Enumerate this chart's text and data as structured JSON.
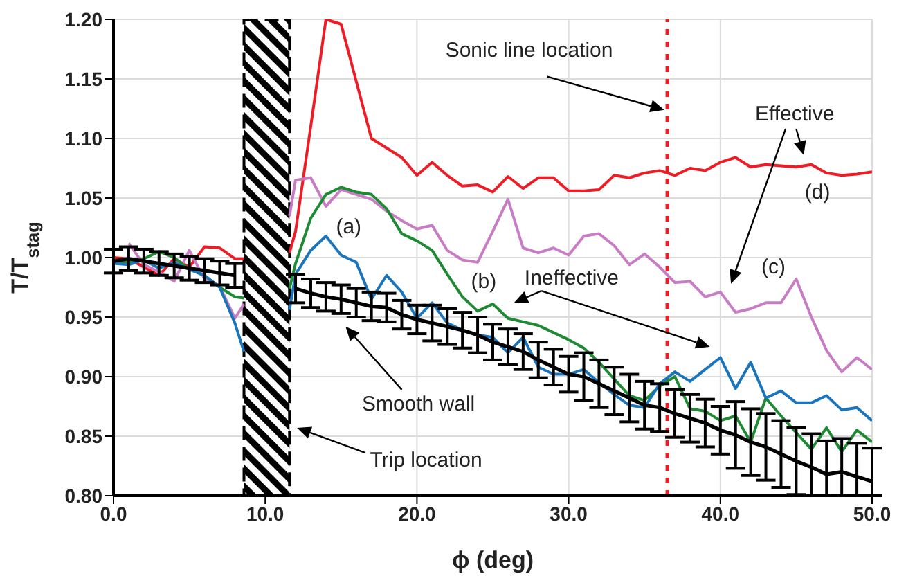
{
  "chart_data": {
    "type": "line",
    "xlabel": "ϕ (deg)",
    "ylabel": "T/T$_{stag}$",
    "x": [
      0,
      1,
      2,
      3,
      4,
      5,
      6,
      7,
      8,
      8.6,
      10,
      11.6,
      12,
      13,
      14,
      15,
      16,
      17,
      18,
      19,
      20,
      21,
      22,
      23,
      24,
      25,
      26,
      27,
      28,
      29,
      30,
      31,
      32,
      33,
      34,
      35,
      36,
      37,
      38,
      39,
      40,
      41,
      42,
      43,
      44,
      45,
      46,
      47,
      48,
      49,
      50
    ],
    "series": [
      {
        "color": "#ee1c25",
        "values": [
          1.0,
          0.999,
          0.992,
          0.985,
          0.999,
          0.992,
          1.009,
          1.008,
          0.999,
          0.999,
          null,
          1.004,
          1.022,
          1.11,
          1.2,
          1.196,
          1.148,
          1.1,
          1.092,
          1.084,
          1.069,
          1.08,
          1.069,
          1.06,
          1.061,
          1.055,
          1.068,
          1.058,
          1.067,
          1.067,
          1.056,
          1.056,
          1.057,
          1.069,
          1.067,
          1.071,
          1.073,
          1.069,
          1.075,
          1.073,
          1.08,
          1.084,
          1.076,
          1.078,
          1.077,
          1.076,
          1.078,
          1.071,
          1.069,
          1.07,
          1.072
        ]
      },
      {
        "color": "#c77cc4",
        "values": [
          null,
          1.012,
          0.994,
          0.988,
          0.98,
          1.006,
          0.982,
          0.976,
          0.949,
          0.961,
          null,
          1.035,
          1.065,
          1.067,
          1.043,
          1.057,
          1.053,
          1.049,
          1.039,
          1.031,
          1.024,
          1.027,
          1.006,
          0.998,
          0.996,
          1.022,
          1.049,
          1.008,
          1.004,
          1.008,
          1.002,
          1.018,
          1.02,
          1.01,
          0.994,
          1.003,
          0.992,
          0.979,
          0.98,
          0.967,
          0.971,
          0.954,
          0.957,
          0.962,
          0.962,
          0.982,
          0.95,
          0.922,
          0.904,
          0.916,
          0.906
        ]
      },
      {
        "color": "#1e8a33",
        "values": [
          0.997,
          0.996,
          0.999,
          1.005,
          1.0,
          0.99,
          0.985,
          0.975,
          0.967,
          0.966,
          null,
          0.974,
          0.995,
          1.033,
          1.053,
          1.059,
          1.055,
          1.053,
          1.041,
          1.02,
          1.014,
          1.006,
          0.986,
          0.967,
          0.955,
          0.961,
          0.949,
          0.946,
          0.943,
          0.937,
          0.931,
          0.924,
          0.912,
          0.898,
          0.884,
          0.88,
          0.892,
          0.9,
          0.873,
          0.871,
          0.863,
          0.867,
          0.845,
          0.882,
          0.867,
          0.853,
          0.839,
          0.857,
          0.837,
          0.855,
          0.845
        ]
      },
      {
        "color": "#1b75bc",
        "values": [
          0.995,
          0.994,
          0.998,
          0.991,
          0.996,
          0.99,
          0.985,
          0.975,
          0.945,
          0.921,
          null,
          0.956,
          0.986,
          1.006,
          1.018,
          1.002,
          0.996,
          0.965,
          0.985,
          0.971,
          0.949,
          0.962,
          0.945,
          0.939,
          0.935,
          0.933,
          0.92,
          0.933,
          0.908,
          0.902,
          0.902,
          0.906,
          0.895,
          0.885,
          0.876,
          0.874,
          0.894,
          0.904,
          0.896,
          0.906,
          0.916,
          0.89,
          0.912,
          0.882,
          0.888,
          0.878,
          0.878,
          0.884,
          0.872,
          0.874,
          0.863
        ]
      },
      {
        "color": "#000000",
        "values": [
          0.997,
          0.999,
          0.997,
          0.995,
          0.993,
          0.991,
          0.989,
          0.987,
          0.985,
          null,
          null,
          null,
          0.974,
          0.97,
          0.967,
          0.965,
          0.962,
          0.959,
          0.958,
          0.952,
          0.948,
          0.945,
          0.942,
          0.939,
          0.935,
          0.929,
          0.925,
          0.921,
          0.914,
          0.908,
          0.902,
          0.9,
          0.894,
          0.888,
          0.882,
          0.876,
          0.874,
          0.869,
          0.865,
          0.861,
          0.855,
          0.851,
          0.845,
          0.841,
          0.835,
          0.829,
          0.824,
          0.818,
          0.82,
          0.816,
          0.812
        ],
        "errors": [
          0.01,
          0.01,
          0.01,
          0.01,
          0.01,
          0.01,
          0.01,
          0.01,
          0.01,
          null,
          null,
          null,
          0.012,
          0.012,
          0.012,
          0.012,
          0.012,
          0.012,
          0.012,
          0.012,
          0.012,
          0.015,
          0.015,
          0.015,
          0.015,
          0.015,
          0.015,
          0.015,
          0.015,
          0.015,
          0.015,
          0.02,
          0.02,
          0.02,
          0.02,
          0.02,
          0.02,
          0.02,
          0.02,
          0.02,
          0.02,
          0.028,
          0.028,
          0.028,
          0.028,
          0.028,
          [
            0.8,
            0.852
          ],
          [
            0.8,
            0.846
          ],
          [
            0.8,
            0.848
          ],
          [
            0.8,
            0.844
          ],
          [
            0.8,
            0.84
          ]
        ]
      }
    ],
    "xlim": [
      0,
      50
    ],
    "xticks": [
      {
        "value": 0,
        "label": "0.0"
      },
      {
        "value": 10,
        "label": "10.0"
      },
      {
        "value": 20,
        "label": "20.0"
      },
      {
        "value": 30,
        "label": "30.0"
      },
      {
        "value": 40,
        "label": "40.0"
      },
      {
        "value": 50,
        "label": "50.0"
      }
    ],
    "ylim": [
      0.8,
      1.2
    ],
    "yticks": [
      {
        "value": 0.8,
        "label": "0.80"
      },
      {
        "value": 0.85,
        "label": "0.85"
      },
      {
        "value": 0.9,
        "label": "0.90"
      },
      {
        "value": 0.95,
        "label": "0.95"
      },
      {
        "value": 1.0,
        "label": "1.00"
      },
      {
        "value": 1.05,
        "label": "1.05"
      },
      {
        "value": 1.1,
        "label": "1.10"
      },
      {
        "value": 1.15,
        "label": "1.15"
      },
      {
        "value": 1.2,
        "label": "1.20"
      }
    ],
    "grid": true,
    "legend": false,
    "marker": "none",
    "line_style": "solid",
    "ref_lines": [
      {
        "axis": "x",
        "value": 36.5,
        "color": "#ee1c25",
        "line_style": "dotted"
      }
    ],
    "bands": [
      {
        "axis": "x",
        "from": 8.6,
        "to": 11.6
      }
    ],
    "annotations": [
      "Sonic line location",
      "Effective",
      "(d)",
      "(c)",
      "Ineffective",
      "(b)",
      "(a)",
      "Smooth wall",
      "Trip location"
    ]
  }
}
